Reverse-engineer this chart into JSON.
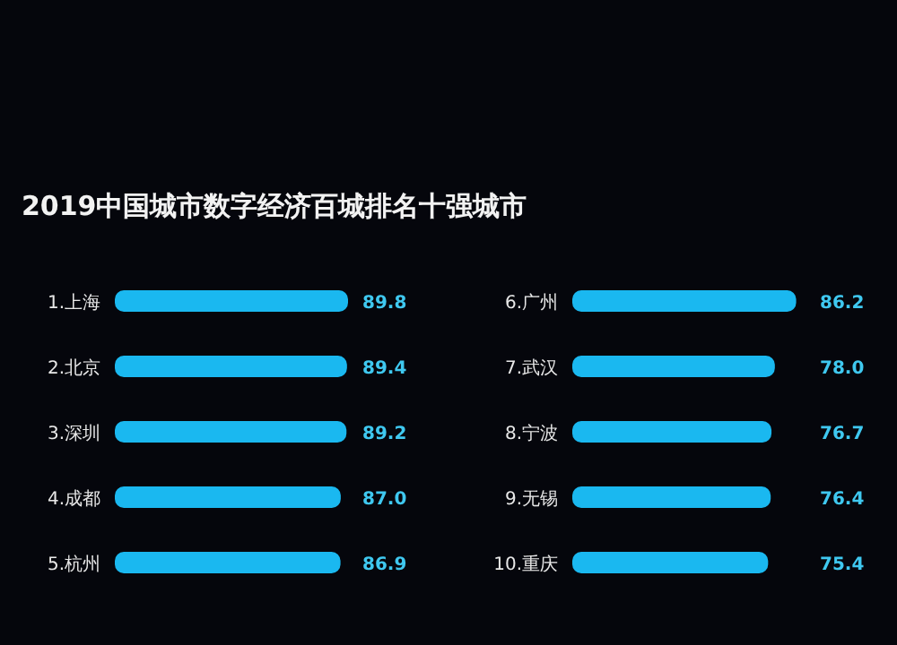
{
  "chart_data": [
    {
      "type": "bar",
      "orientation": "horizontal",
      "title": "2019中国城市数字经济百城排名十强城市",
      "categories": [
        "1.上海",
        "2.北京",
        "3.深圳",
        "4.成都",
        "5.杭州"
      ],
      "values": [
        89.8,
        89.4,
        89.2,
        87.0,
        86.9
      ],
      "value_labels": [
        "89.8",
        "89.4",
        "89.2",
        "87.0",
        "86.9"
      ],
      "color": "#1ab8f0"
    },
    {
      "type": "bar",
      "orientation": "horizontal",
      "categories": [
        "6.广州",
        "7.武汉",
        "8.宁波",
        "9.无锡",
        "10.重庆"
      ],
      "values": [
        86.2,
        78.0,
        76.7,
        76.4,
        75.4
      ],
      "value_labels": [
        "86.2",
        "78.0",
        "76.7",
        "76.4",
        "75.4"
      ],
      "color": "#1ab8f0"
    }
  ]
}
